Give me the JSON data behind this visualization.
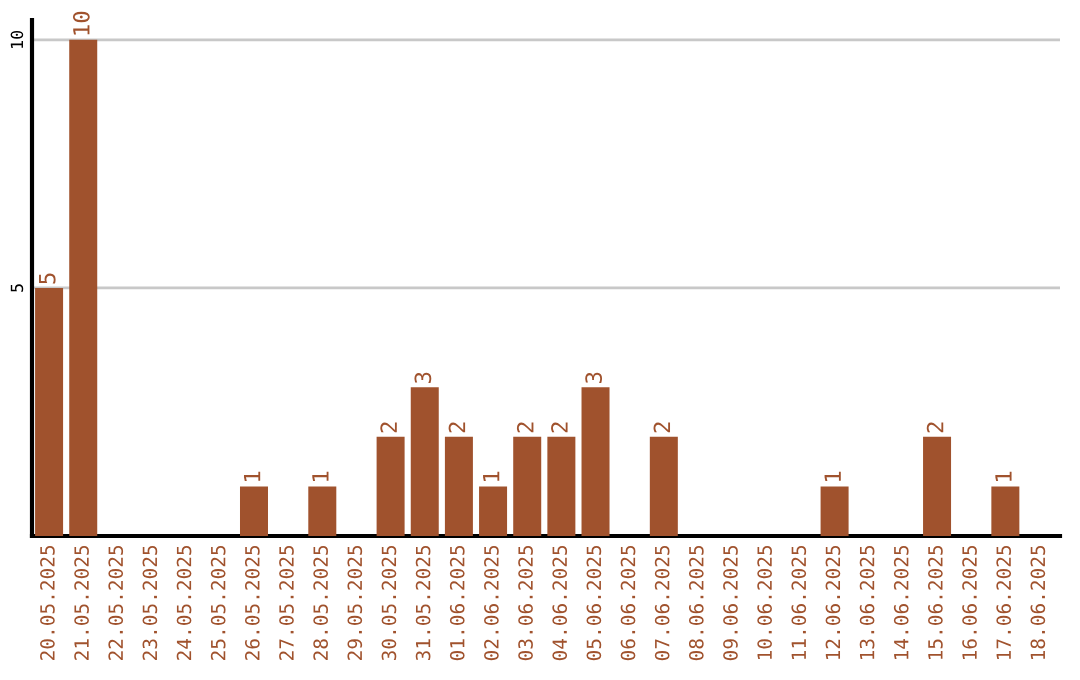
{
  "chart_data": {
    "type": "bar",
    "categories": [
      "20.05.2025",
      "21.05.2025",
      "22.05.2025",
      "23.05.2025",
      "24.05.2025",
      "25.05.2025",
      "26.05.2025",
      "27.05.2025",
      "28.05.2025",
      "29.05.2025",
      "30.05.2025",
      "31.05.2025",
      "01.06.2025",
      "02.06.2025",
      "03.06.2025",
      "04.06.2025",
      "05.06.2025",
      "06.06.2025",
      "07.06.2025",
      "08.06.2025",
      "09.06.2025",
      "10.06.2025",
      "11.06.2025",
      "12.06.2025",
      "13.06.2025",
      "14.06.2025",
      "15.06.2025",
      "16.06.2025",
      "17.06.2025",
      "18.06.2025"
    ],
    "values": [
      5,
      10,
      0,
      0,
      0,
      0,
      1,
      0,
      1,
      0,
      2,
      3,
      2,
      1,
      2,
      2,
      3,
      0,
      2,
      0,
      0,
      0,
      0,
      1,
      0,
      0,
      2,
      0,
      1,
      0
    ],
    "value_labels": [
      "5",
      "10",
      null,
      null,
      null,
      null,
      "1",
      null,
      "1",
      null,
      "2",
      "3",
      "2",
      "1",
      "2",
      "2",
      "3",
      null,
      "2",
      null,
      null,
      null,
      null,
      "1",
      null,
      null,
      "2",
      null,
      "1",
      null
    ],
    "color": "#a0522d",
    "ylim": [
      0,
      10.4
    ],
    "yticks": [
      5,
      10
    ],
    "grid": "y"
  }
}
